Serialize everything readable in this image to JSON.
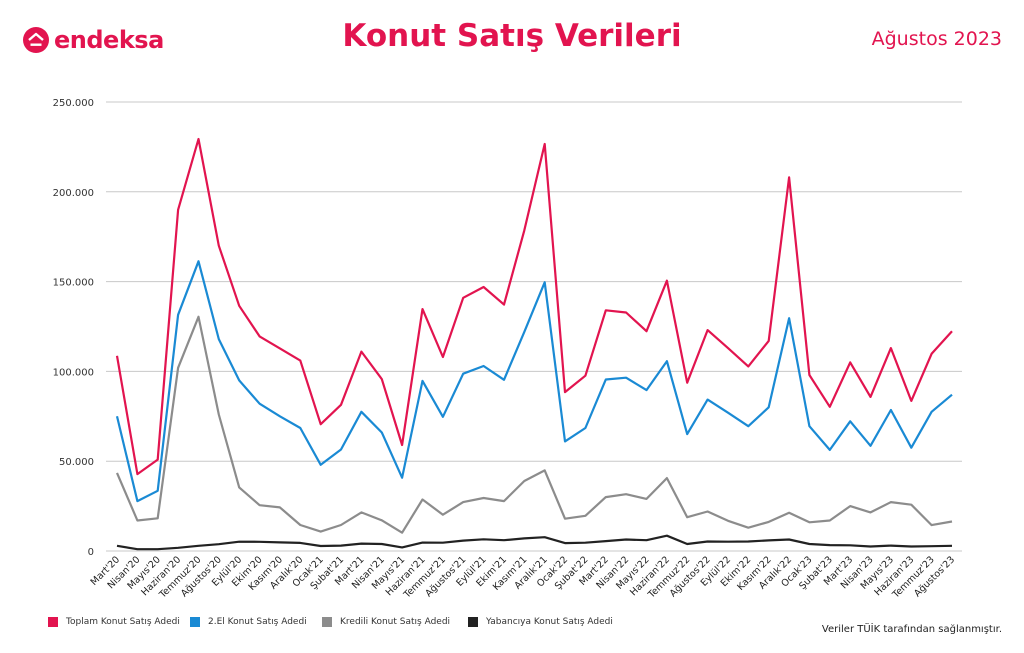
{
  "header": {
    "logo_text": "endeksa",
    "title": "Konut Satış Verileri",
    "date": "Ağustos 2023"
  },
  "footer": {
    "source_note": "Veriler TÜİK tarafından sağlanmıştır."
  },
  "colors": {
    "brand": "#e2144f",
    "toplam": "#e2144f",
    "ikinci_el": "#1a8ad4",
    "kredili": "#8c8c8c",
    "yabanci": "#222222"
  },
  "chart_data": {
    "type": "line",
    "ylim": [
      0,
      250000
    ],
    "yticks": [
      "0",
      "50.000",
      "100.000",
      "150.000",
      "200.000",
      "250.000"
    ],
    "ytick_values": [
      0,
      50000,
      100000,
      150000,
      200000,
      250000
    ],
    "grid": true,
    "legend_position": "bottom",
    "categories": [
      "Mart'20",
      "Nisan'20",
      "Mayıs'20",
      "Haziran'20",
      "Temmuz'20",
      "Ağustos'20",
      "Eylül'20",
      "Ekim'20",
      "Kasım'20",
      "Aralık'20",
      "Ocak'21",
      "Şubat'21",
      "Mart'21",
      "Nisan'21",
      "Mayıs'21",
      "Haziran'21",
      "Temmuz'21",
      "Ağustos'21",
      "Eylül'21",
      "Ekim'21",
      "Kasım'21",
      "Aralık'21",
      "Ocak'22",
      "Şubat'22",
      "Mart'22",
      "Nisan'22",
      "Mayıs'22",
      "Haziran'22",
      "Temmuz'22",
      "Ağustos'22",
      "Eylül'22",
      "Ekim'22",
      "Kasım'22",
      "Aralık'22",
      "Ocak'23",
      "Şubat'23",
      "Mart'23",
      "Nisan'23",
      "Mayıs'23",
      "Haziran'23",
      "Temmuz'23",
      "Ağustos'23"
    ],
    "series": [
      {
        "name": "Toplam Konut Satış Adedi",
        "color": "#e2144f",
        "values": [
          108700,
          42800,
          50900,
          190000,
          229400,
          170000,
          136500,
          119500,
          112800,
          106000,
          70600,
          81400,
          111000,
          95700,
          59000,
          134700,
          108000,
          141000,
          147000,
          137200,
          178500,
          226600,
          88500,
          97600,
          134000,
          132800,
          122400,
          150500,
          93700,
          123000,
          113000,
          102800,
          117000,
          208000,
          98000,
          80300,
          105000,
          85800,
          113000,
          83600,
          109800,
          122300
        ]
      },
      {
        "name": "2.El Konut Satış Adedi",
        "color": "#1a8ad4",
        "values": [
          75000,
          27800,
          33500,
          131500,
          161300,
          118000,
          95000,
          82000,
          75000,
          68500,
          48000,
          56500,
          77500,
          66000,
          40800,
          94700,
          74700,
          98700,
          103000,
          95300,
          122000,
          149600,
          61000,
          68500,
          95500,
          96500,
          89600,
          105700,
          65100,
          84300,
          77000,
          69500,
          80000,
          129600,
          69500,
          56300,
          72200,
          58600,
          78500,
          57500,
          77500,
          87000
        ]
      },
      {
        "name": "Kredili Konut Satış Adedi",
        "color": "#8c8c8c",
        "values": [
          43500,
          17000,
          18200,
          102000,
          130400,
          76000,
          35400,
          25500,
          24300,
          14500,
          10800,
          14500,
          21500,
          17100,
          10200,
          28700,
          20200,
          27200,
          29500,
          27800,
          39000,
          44900,
          18000,
          19600,
          30000,
          31600,
          29000,
          40600,
          18800,
          22000,
          16800,
          13000,
          16200,
          21300,
          16000,
          17000,
          25000,
          21500,
          27200,
          25800,
          14400,
          16400
        ]
      },
      {
        "name": "Yabancıya Konut Satış Adedi",
        "color": "#222222",
        "values": [
          2900,
          1000,
          1000,
          1800,
          2900,
          3800,
          5200,
          5100,
          4800,
          4500,
          2800,
          3000,
          4100,
          3900,
          2000,
          4700,
          4600,
          5800,
          6500,
          6000,
          7000,
          7700,
          4400,
          4600,
          5500,
          6400,
          6000,
          8500,
          3900,
          5300,
          5200,
          5300,
          5900,
          6400,
          3900,
          3300,
          3200,
          2500,
          3000,
          2500,
          2700,
          2900
        ]
      }
    ]
  }
}
